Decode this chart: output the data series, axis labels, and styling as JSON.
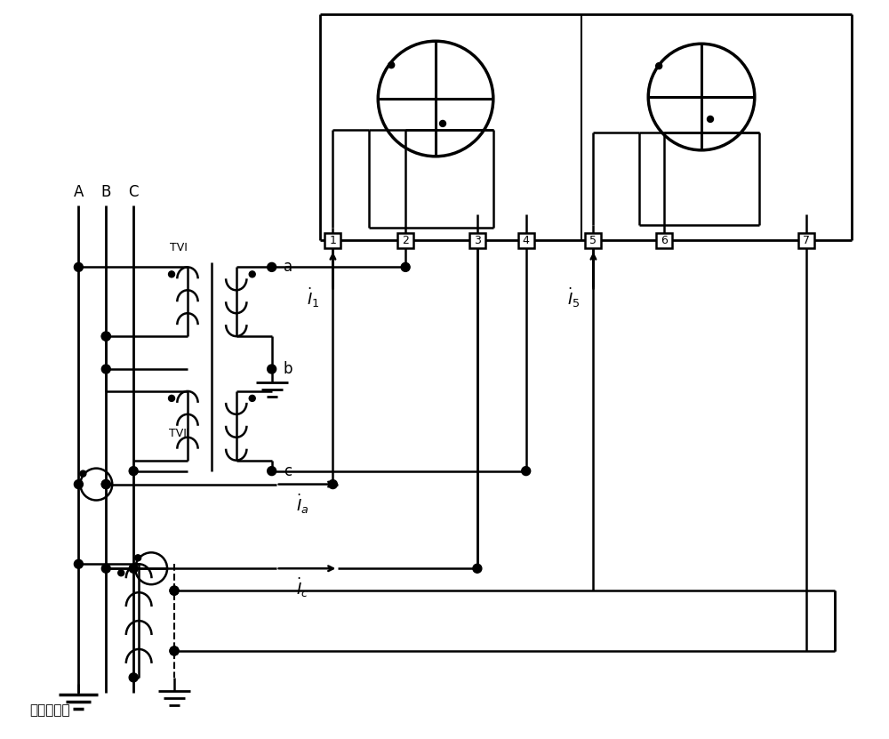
{
  "bg_color": "#ffffff",
  "line_color": "#000000",
  "bottom_label": "用户变压器",
  "terminal_labels": [
    "1",
    "2",
    "3",
    "4",
    "5",
    "6",
    "7"
  ],
  "phase_labels": [
    "A",
    "B",
    "C"
  ],
  "node_labels": [
    "a",
    "b",
    "c"
  ],
  "tv1_label": "TVⅠ",
  "tv2_label": "TVⅡ"
}
